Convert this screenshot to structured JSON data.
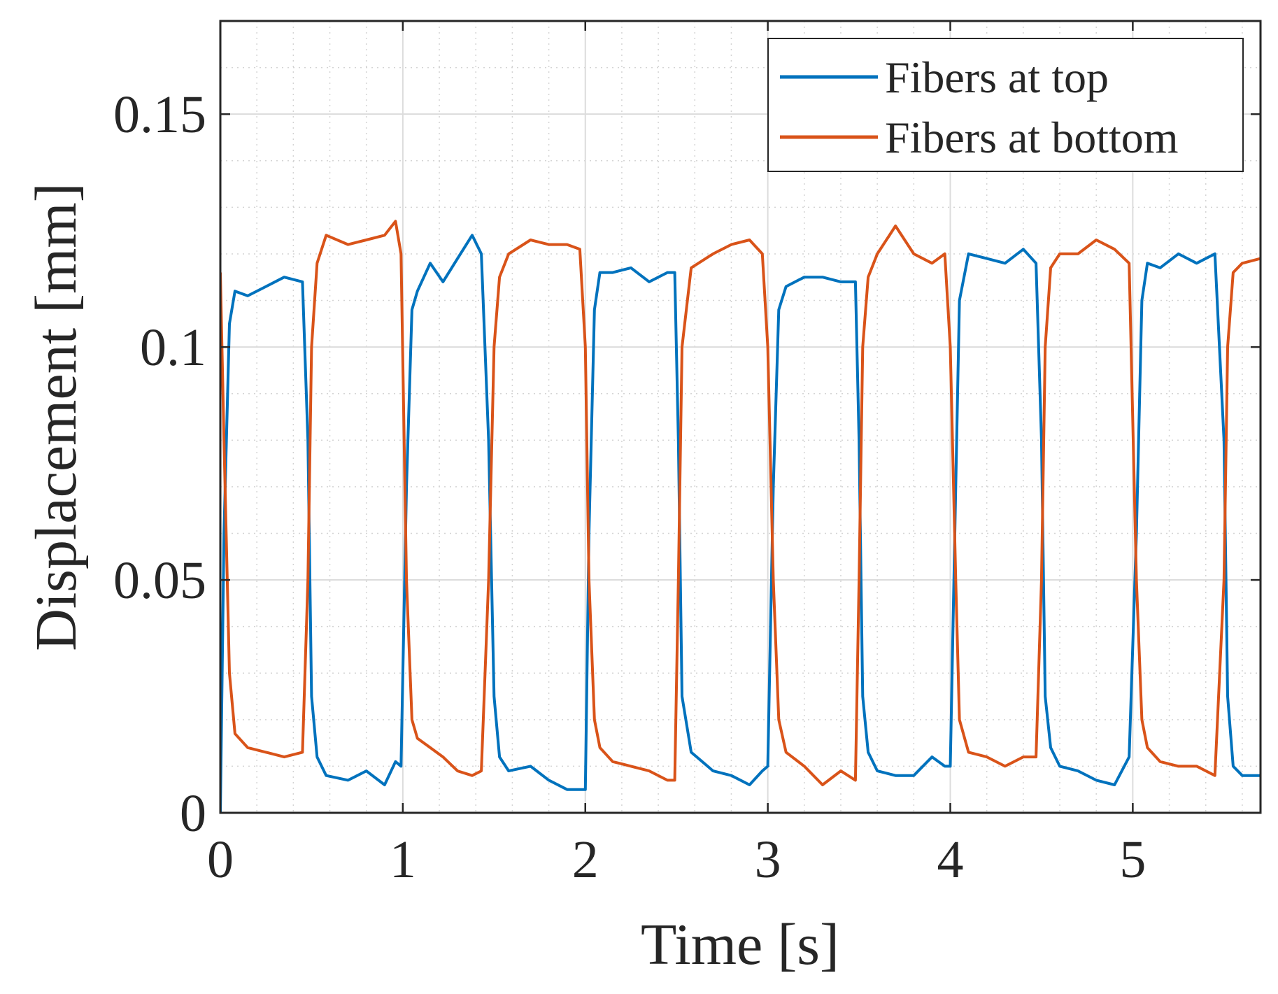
{
  "chart_data": {
    "type": "line",
    "title": "",
    "xlabel": "Time [s]",
    "ylabel": "Displacement [mm]",
    "xlim": [
      0,
      5.7
    ],
    "ylim": [
      0,
      0.17
    ],
    "xticks": [
      0,
      1,
      2,
      3,
      4,
      5
    ],
    "yticks": [
      0,
      0.05,
      0.1,
      0.15
    ],
    "xtick_labels": [
      "0",
      "1",
      "2",
      "3",
      "4",
      "5"
    ],
    "ytick_labels": [
      "0",
      "0.05",
      "0.1",
      "0.15"
    ],
    "grid": "major and minor",
    "legend_position": "top-right",
    "series": [
      {
        "name": "Fibers at top",
        "color": "#0072BD",
        "x": [
          0,
          0.02,
          0.05,
          0.08,
          0.15,
          0.25,
          0.35,
          0.45,
          0.48,
          0.5,
          0.53,
          0.58,
          0.7,
          0.8,
          0.9,
          0.96,
          0.99,
          1.02,
          1.05,
          1.08,
          1.15,
          1.22,
          1.3,
          1.38,
          1.43,
          1.47,
          1.5,
          1.53,
          1.58,
          1.7,
          1.8,
          1.9,
          1.97,
          2.0,
          2.02,
          2.05,
          2.08,
          2.15,
          2.25,
          2.35,
          2.45,
          2.49,
          2.51,
          2.53,
          2.58,
          2.7,
          2.8,
          2.9,
          2.97,
          3.0,
          3.03,
          3.06,
          3.1,
          3.2,
          3.3,
          3.4,
          3.48,
          3.5,
          3.52,
          3.55,
          3.6,
          3.7,
          3.8,
          3.9,
          3.97,
          4.0,
          4.03,
          4.05,
          4.1,
          4.2,
          4.3,
          4.4,
          4.47,
          4.5,
          4.52,
          4.55,
          4.6,
          4.7,
          4.8,
          4.9,
          4.98,
          5.02,
          5.05,
          5.08,
          5.15,
          5.25,
          5.35,
          5.45,
          5.5,
          5.52,
          5.55,
          5.6,
          5.7
        ],
        "values": [
          0.0,
          0.06,
          0.105,
          0.112,
          0.111,
          0.113,
          0.115,
          0.114,
          0.08,
          0.025,
          0.012,
          0.008,
          0.007,
          0.009,
          0.006,
          0.011,
          0.01,
          0.07,
          0.108,
          0.112,
          0.118,
          0.114,
          0.119,
          0.124,
          0.12,
          0.08,
          0.025,
          0.012,
          0.009,
          0.01,
          0.007,
          0.005,
          0.005,
          0.005,
          0.06,
          0.108,
          0.116,
          0.116,
          0.117,
          0.114,
          0.116,
          0.116,
          0.08,
          0.025,
          0.013,
          0.009,
          0.008,
          0.006,
          0.009,
          0.01,
          0.07,
          0.108,
          0.113,
          0.115,
          0.115,
          0.114,
          0.114,
          0.08,
          0.025,
          0.013,
          0.009,
          0.008,
          0.008,
          0.012,
          0.01,
          0.01,
          0.07,
          0.11,
          0.12,
          0.119,
          0.118,
          0.121,
          0.118,
          0.08,
          0.025,
          0.014,
          0.01,
          0.009,
          0.007,
          0.006,
          0.012,
          0.06,
          0.11,
          0.118,
          0.117,
          0.12,
          0.118,
          0.12,
          0.08,
          0.025,
          0.01,
          0.008,
          0.008
        ]
      },
      {
        "name": "Fibers at bottom",
        "color": "#D95319",
        "x": [
          0,
          0.02,
          0.05,
          0.08,
          0.15,
          0.25,
          0.35,
          0.45,
          0.48,
          0.5,
          0.53,
          0.58,
          0.7,
          0.8,
          0.9,
          0.96,
          0.99,
          1.02,
          1.05,
          1.08,
          1.15,
          1.22,
          1.3,
          1.38,
          1.43,
          1.47,
          1.5,
          1.53,
          1.58,
          1.7,
          1.8,
          1.9,
          1.97,
          2.0,
          2.02,
          2.05,
          2.08,
          2.15,
          2.25,
          2.35,
          2.45,
          2.49,
          2.51,
          2.53,
          2.58,
          2.7,
          2.8,
          2.9,
          2.97,
          3.0,
          3.03,
          3.06,
          3.1,
          3.2,
          3.3,
          3.4,
          3.48,
          3.5,
          3.52,
          3.55,
          3.6,
          3.7,
          3.8,
          3.9,
          3.97,
          4.0,
          4.03,
          4.05,
          4.1,
          4.2,
          4.3,
          4.4,
          4.47,
          4.5,
          4.52,
          4.55,
          4.6,
          4.7,
          4.8,
          4.9,
          4.98,
          5.02,
          5.05,
          5.08,
          5.15,
          5.25,
          5.35,
          5.45,
          5.5,
          5.52,
          5.55,
          5.6,
          5.7
        ],
        "values": [
          0.116,
          0.08,
          0.03,
          0.017,
          0.014,
          0.013,
          0.012,
          0.013,
          0.05,
          0.1,
          0.118,
          0.124,
          0.122,
          0.123,
          0.124,
          0.127,
          0.12,
          0.05,
          0.02,
          0.016,
          0.014,
          0.012,
          0.009,
          0.008,
          0.009,
          0.05,
          0.1,
          0.115,
          0.12,
          0.123,
          0.122,
          0.122,
          0.121,
          0.1,
          0.05,
          0.02,
          0.014,
          0.011,
          0.01,
          0.009,
          0.007,
          0.007,
          0.05,
          0.1,
          0.117,
          0.12,
          0.122,
          0.123,
          0.12,
          0.1,
          0.05,
          0.02,
          0.013,
          0.01,
          0.006,
          0.009,
          0.007,
          0.05,
          0.1,
          0.115,
          0.12,
          0.126,
          0.12,
          0.118,
          0.12,
          0.1,
          0.05,
          0.02,
          0.013,
          0.012,
          0.01,
          0.012,
          0.012,
          0.05,
          0.1,
          0.117,
          0.12,
          0.12,
          0.123,
          0.121,
          0.118,
          0.05,
          0.02,
          0.014,
          0.011,
          0.01,
          0.01,
          0.008,
          0.05,
          0.1,
          0.116,
          0.118,
          0.119
        ]
      }
    ]
  }
}
